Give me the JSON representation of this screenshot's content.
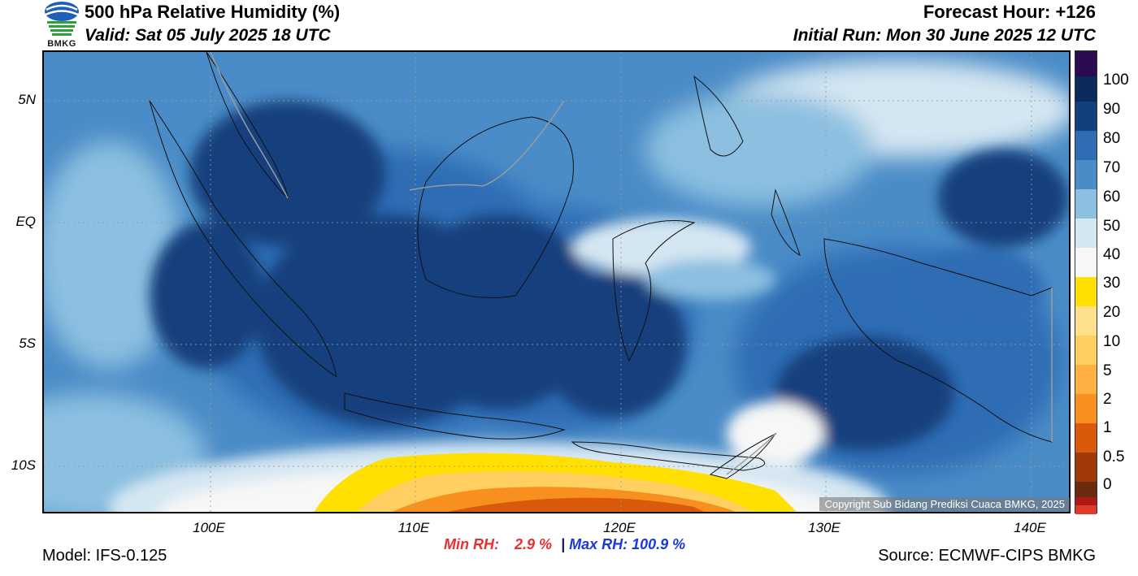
{
  "header": {
    "title": "500 hPa Relative Humidity (%)",
    "valid": "Valid: Sat 05 July 2025 18 UTC",
    "forecast_hour": "Forecast Hour: +126",
    "initial_run": "Initial Run: Mon 30 June 2025 12 UTC",
    "logo_text": "BMKG"
  },
  "map": {
    "lat_labels": [
      "5N",
      "EQ",
      "5S",
      "10S"
    ],
    "lon_labels": [
      "100E",
      "110E",
      "120E",
      "130E",
      "140E"
    ],
    "copyright": "Copyright Sub Bidang Prediksi Cuaca BMKG, 2025"
  },
  "colorbar": {
    "labels": [
      "100",
      "90",
      "80",
      "70",
      "60",
      "50",
      "40",
      "30",
      "20",
      "10",
      "5",
      "2",
      "1",
      "0.5",
      "0"
    ],
    "colors": [
      "#2b0a52",
      "#0a2a5c",
      "#123f7d",
      "#2e6db4",
      "#4a8cc7",
      "#8cbfe0",
      "#d4e6f2",
      "#f7f7f7",
      "#ffe000",
      "#ffe08c",
      "#ffd060",
      "#ffb040",
      "#f89020",
      "#d85a0a",
      "#a03a08",
      "#6a2a10",
      "#b01818",
      "#e03a2a"
    ]
  },
  "footer": {
    "min_rh_label": "Min RH:",
    "min_rh_value": "2.9 %",
    "separator": "|",
    "max_rh_label": "Max RH:",
    "max_rh_value": "100.9 %",
    "model": "Model: IFS-0.125",
    "source": "Source: ECMWF-CIPS BMKG"
  }
}
